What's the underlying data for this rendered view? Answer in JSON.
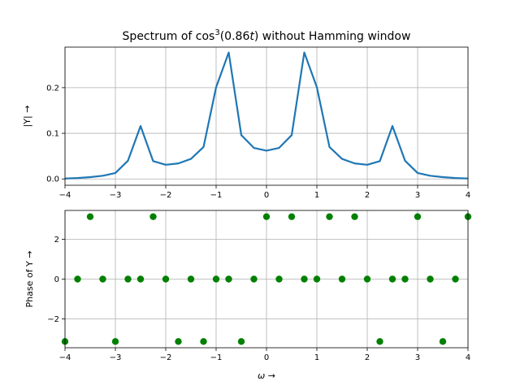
{
  "title_main": "Spectrum of cos",
  "title_sup": "3",
  "title_arg": "(0.86",
  "title_var": "t",
  "title_rest": ") without Hamming window",
  "colors": {
    "magnitude_line": "#1f77b4",
    "phase_points": "#008000"
  },
  "chart_data": [
    {
      "type": "line",
      "ylabel": "|Y| →",
      "xlim": [
        -4,
        4
      ],
      "ylim": [
        -0.0138,
        0.2888
      ],
      "xticks": [
        -4,
        -3,
        -2,
        -1,
        0,
        1,
        2,
        3,
        4
      ],
      "yticks": [
        0.0,
        0.1,
        0.2
      ],
      "ytick_labels": [
        "0.0",
        "0.1",
        "0.2"
      ],
      "grid": true,
      "series": [
        {
          "x": [
            -4,
            -3.75,
            -3.5,
            -3.25,
            -3,
            -2.75,
            -2.5,
            -2.25,
            -2,
            -1.75,
            -1.5,
            -1.25,
            -1,
            -0.75,
            -0.5,
            -0.25,
            0,
            0.25,
            0.5,
            0.75,
            1,
            1.25,
            1.5,
            1.75,
            2,
            2.25,
            2.5,
            2.75,
            3,
            3.25,
            3.5,
            3.75,
            4
          ],
          "y": [
            0.001,
            0.002,
            0.004,
            0.007,
            0.013,
            0.04,
            0.116,
            0.039,
            0.031,
            0.034,
            0.044,
            0.07,
            0.201,
            0.277,
            0.096,
            0.068,
            0.062,
            0.068,
            0.096,
            0.277,
            0.201,
            0.07,
            0.044,
            0.034,
            0.031,
            0.039,
            0.116,
            0.04,
            0.013,
            0.007,
            0.004,
            0.002,
            0.001
          ]
        }
      ]
    },
    {
      "type": "scatter",
      "xlabel": "ω →",
      "ylabel": "Phase of Y →",
      "xlim": [
        -4,
        4
      ],
      "ylim": [
        -3.4558,
        3.4558
      ],
      "xticks": [
        -4,
        -3,
        -2,
        -1,
        0,
        1,
        2,
        3,
        4
      ],
      "yticks": [
        -2,
        0,
        2
      ],
      "grid": true,
      "series": [
        {
          "x": [
            -4,
            -3.75,
            -3.5,
            -3.25,
            -3,
            -2.75,
            -2.5,
            -2.25,
            -2,
            -1.75,
            -1.5,
            -1.25,
            -1,
            -0.75,
            -0.5,
            -0.25,
            0,
            0.25,
            0.5,
            0.75,
            1,
            1.25,
            1.5,
            1.75,
            2,
            2.25,
            2.5,
            2.75,
            3,
            3.25,
            3.5,
            3.75,
            4
          ],
          "y": [
            -3.1416,
            0,
            3.1416,
            0,
            -3.1416,
            0,
            0,
            3.1416,
            0,
            -3.1416,
            0,
            -3.1416,
            0,
            0,
            -3.1416,
            0,
            3.1416,
            0,
            3.1416,
            0,
            0,
            3.1416,
            0,
            3.1416,
            0,
            -3.1416,
            0,
            0,
            3.1416,
            0,
            -3.1416,
            0,
            3.1416
          ]
        }
      ]
    }
  ]
}
